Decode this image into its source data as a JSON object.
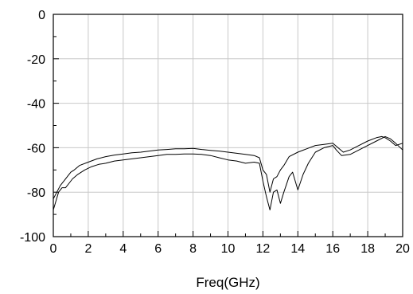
{
  "chart_data": {
    "type": "line",
    "title": "",
    "xlabel": "Freq(GHz)",
    "ylabel": "",
    "xlim": [
      0,
      20
    ],
    "ylim": [
      -100,
      0
    ],
    "grid": true,
    "x_ticks": [
      0,
      2,
      4,
      6,
      8,
      10,
      12,
      14,
      16,
      18,
      20
    ],
    "y_ticks": [
      0,
      -20,
      -40,
      -60,
      -80,
      -100
    ],
    "series": [
      {
        "x": [
          0,
          0.2,
          0.4,
          0.6,
          0.8,
          1,
          1.2,
          1.5,
          2,
          2.5,
          3,
          3.5,
          4,
          4.5,
          5,
          5.5,
          6,
          6.5,
          7,
          7.5,
          8,
          8.5,
          9,
          9.5,
          10,
          10.5,
          11,
          11.5,
          11.8,
          12,
          12.2,
          12.4,
          12.6,
          12.8,
          13,
          13.2,
          13.5,
          14,
          14.5,
          15,
          15.5,
          16,
          16.3,
          16.6,
          17,
          17.5,
          18,
          18.5,
          18.8,
          19,
          19.3,
          19.6,
          20
        ],
        "values": [
          -83,
          -80,
          -77,
          -75,
          -73,
          -71,
          -70,
          -68,
          -66.5,
          -65,
          -64,
          -63.3,
          -62.8,
          -62.3,
          -62,
          -61.5,
          -61,
          -60.8,
          -60.5,
          -60.5,
          -60.3,
          -60.8,
          -61.2,
          -61.5,
          -62,
          -62.5,
          -63,
          -63.5,
          -64.5,
          -70,
          -72,
          -80,
          -74,
          -73,
          -70,
          -68,
          -64,
          -62,
          -60.5,
          -59,
          -58.5,
          -58,
          -60,
          -62,
          -61,
          -59,
          -57,
          -55.5,
          -55,
          -55.5,
          -57,
          -59,
          -58
        ]
      },
      {
        "x": [
          0,
          0.15,
          0.3,
          0.5,
          0.7,
          0.9,
          1.1,
          1.4,
          1.8,
          2.2,
          2.6,
          3,
          3.5,
          4,
          4.5,
          5,
          5.5,
          6,
          6.5,
          7,
          7.5,
          8,
          8.5,
          9,
          9.5,
          10,
          10.5,
          11,
          11.5,
          11.8,
          12,
          12.2,
          12.4,
          12.6,
          12.8,
          13,
          13.2,
          13.5,
          13.7,
          14,
          14.3,
          14.6,
          15,
          15.5,
          16,
          16.2,
          16.5,
          17,
          17.5,
          18,
          18.5,
          19,
          19.3,
          19.6,
          20
        ],
        "values": [
          -88,
          -84,
          -80,
          -78,
          -78,
          -76,
          -74,
          -72,
          -70,
          -68.5,
          -67.5,
          -67,
          -66,
          -65.5,
          -65,
          -64.5,
          -64,
          -63.5,
          -63,
          -63,
          -62.8,
          -62.8,
          -63,
          -63.5,
          -64.5,
          -65.5,
          -66,
          -67,
          -66.5,
          -67,
          -75,
          -82,
          -88,
          -80,
          -79,
          -85,
          -80,
          -73,
          -71,
          -79,
          -72,
          -67,
          -62,
          -60,
          -59,
          -61,
          -63.5,
          -63,
          -61,
          -59,
          -57,
          -55,
          -56,
          -58,
          -61
        ]
      }
    ]
  }
}
